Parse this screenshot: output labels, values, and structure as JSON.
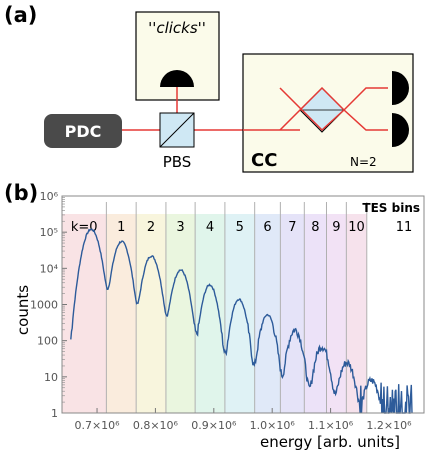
{
  "panel_a": {
    "label": "(a)",
    "clicks_label": "''clicks''",
    "pdc_label": "PDC",
    "pbs_label": "PBS",
    "cc_label": "CC",
    "n_label": "N=2"
  },
  "panel_b": {
    "label": "(b)"
  },
  "chart_data": {
    "type": "line",
    "xlabel": "energy [arb. units]",
    "ylabel": "counts",
    "yscale": "log",
    "ylim": [
      1,
      1000000
    ],
    "xlim": [
      640000,
      1260000
    ],
    "x_ticks": [
      {
        "value": 700000,
        "label": "0.7×10⁶"
      },
      {
        "value": 800000,
        "label": "0.8×10⁶"
      },
      {
        "value": 900000,
        "label": "0.9×10⁶"
      },
      {
        "value": 1000000,
        "label": "1.0×10⁶"
      },
      {
        "value": 1100000,
        "label": "1.1×10⁶"
      },
      {
        "value": 1200000,
        "label": "1.2×10⁶"
      }
    ],
    "y_ticks": [
      {
        "value": 1,
        "label": "1"
      },
      {
        "value": 10,
        "label": "10"
      },
      {
        "value": 100,
        "label": "100"
      },
      {
        "value": 1000,
        "label": "1000"
      },
      {
        "value": 10000,
        "label": "10⁴"
      },
      {
        "value": 100000,
        "label": "10⁵"
      },
      {
        "value": 1000000,
        "label": "10⁶"
      }
    ],
    "bins_title": "TES bins",
    "bins": [
      {
        "label": "k=0",
        "start": 640000,
        "end": 716000,
        "color": "#f7d9dc"
      },
      {
        "label": "1",
        "start": 716000,
        "end": 767000,
        "color": "#f8e6d2"
      },
      {
        "label": "2",
        "start": 767000,
        "end": 818000,
        "color": "#f5f2d2"
      },
      {
        "label": "3",
        "start": 818000,
        "end": 868000,
        "color": "#e3f3d4"
      },
      {
        "label": "4",
        "start": 868000,
        "end": 919000,
        "color": "#d6f2e4"
      },
      {
        "label": "5",
        "start": 919000,
        "end": 970000,
        "color": "#d4eef2"
      },
      {
        "label": "6",
        "start": 970000,
        "end": 1014000,
        "color": "#d6e2f5"
      },
      {
        "label": "7",
        "start": 1014000,
        "end": 1055000,
        "color": "#dcdaf5"
      },
      {
        "label": "8",
        "start": 1055000,
        "end": 1093000,
        "color": "#e5d8f5"
      },
      {
        "label": "9",
        "start": 1093000,
        "end": 1127000,
        "color": "#eed8f2"
      },
      {
        "label": "10",
        "start": 1127000,
        "end": 1162000,
        "color": "#f3d8e6"
      },
      {
        "label": "11",
        "start": 1162000,
        "end": 1260000,
        "color": "#ffffff"
      }
    ],
    "series": [
      {
        "color": "#2d5b9a",
        "peaks": [
          {
            "x": 690000,
            "counts": 120000,
            "width": 17000
          },
          {
            "x": 742000,
            "counts": 55000,
            "width": 16000
          },
          {
            "x": 793000,
            "counts": 22000,
            "width": 16000
          },
          {
            "x": 843000,
            "counts": 9000,
            "width": 16000
          },
          {
            "x": 893000,
            "counts": 3500,
            "width": 15000
          },
          {
            "x": 943000,
            "counts": 1400,
            "width": 15000
          },
          {
            "x": 992000,
            "counts": 520,
            "width": 15000
          },
          {
            "x": 1039000,
            "counts": 200,
            "width": 15000
          },
          {
            "x": 1085000,
            "counts": 70,
            "width": 15000
          },
          {
            "x": 1128000,
            "counts": 25,
            "width": 16000
          },
          {
            "x": 1170000,
            "counts": 8,
            "width": 17000
          }
        ]
      }
    ]
  }
}
